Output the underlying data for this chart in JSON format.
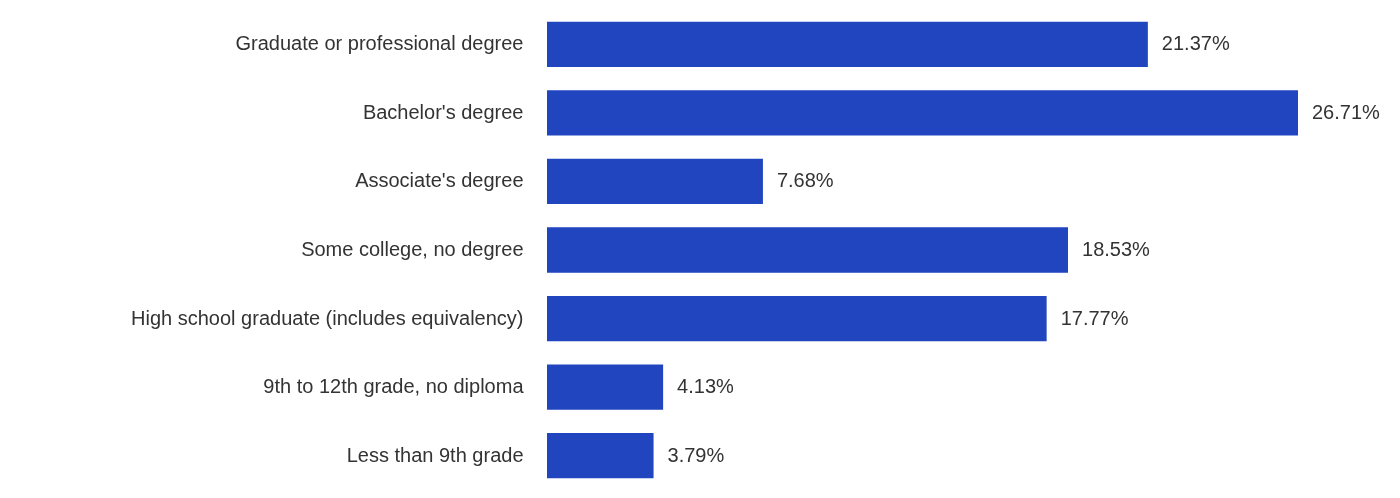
{
  "chart_data": {
    "type": "bar",
    "orientation": "horizontal",
    "categories": [
      "Graduate or professional degree",
      "Bachelor's degree",
      "Associate's degree",
      "Some college, no degree",
      "High school graduate (includes equivalency)",
      "9th to 12th grade, no diploma",
      "Less than 9th grade"
    ],
    "values": [
      21.37,
      26.71,
      7.68,
      18.53,
      17.77,
      4.13,
      3.79
    ],
    "value_labels": [
      "21.37%",
      "26.71%",
      "7.68%",
      "18.53%",
      "17.77%",
      "4.13%",
      "3.79%"
    ],
    "color": "#2145bf"
  }
}
